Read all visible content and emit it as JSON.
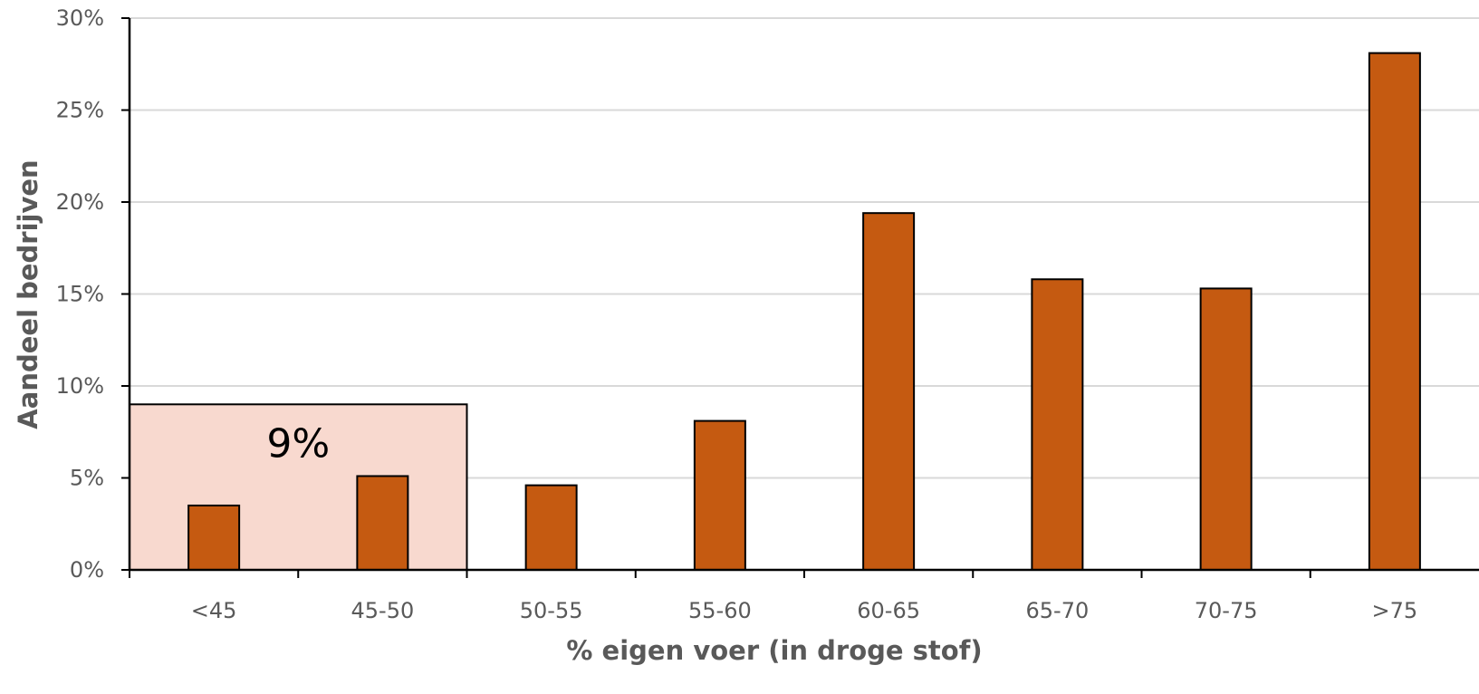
{
  "chart_data": {
    "type": "bar",
    "categories": [
      "<45",
      "45-50",
      "50-55",
      "55-60",
      "60-65",
      "65-70",
      "70-75",
      ">75"
    ],
    "values": [
      3.5,
      5.1,
      4.6,
      8.1,
      19.4,
      15.8,
      15.3,
      28.1
    ],
    "xlabel": "% eigen voer (in droge stof)",
    "ylabel": "Aandeel bedrijven",
    "ylim": [
      0,
      30
    ],
    "yticks": [
      0,
      5,
      10,
      15,
      20,
      25,
      30
    ],
    "ytick_labels": [
      "0%",
      "5%",
      "10%",
      "15%",
      "20%",
      "25%",
      "30%"
    ],
    "grid": true,
    "legend": "none",
    "annotation": {
      "text": "9%",
      "value": 9,
      "from_category": "<45",
      "to_category": "45-50"
    },
    "colors": {
      "bar": "#c55a11",
      "bar_edge": "#000000",
      "annotation_fill": "#f8d9cf",
      "annotation_edge": "#000000",
      "grid": "#d9d9d9",
      "axis": "#000000",
      "text": "#595959"
    }
  }
}
